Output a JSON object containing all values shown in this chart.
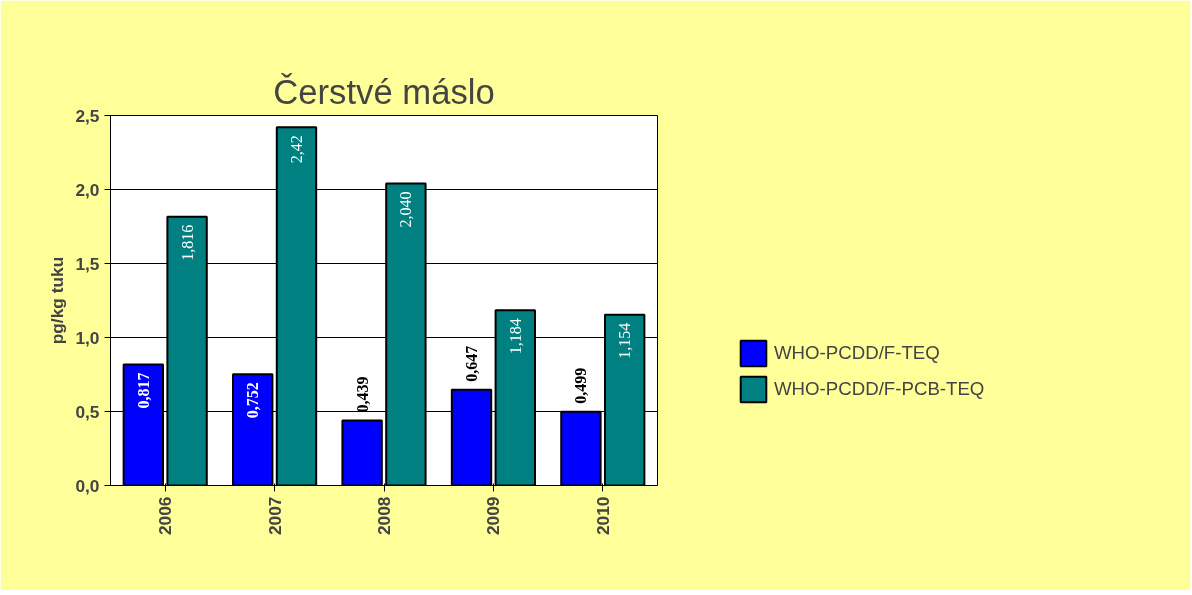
{
  "chart_data": {
    "type": "bar",
    "title": "Čerstvé máslo",
    "ylabel": "pg/kg tuku",
    "categories": [
      "2006",
      "2007",
      "2008",
      "2009",
      "2010"
    ],
    "series": [
      {
        "name": "WHO-PCDD/F-TEQ",
        "color": "#0000ff",
        "values": [
          0.817,
          0.752,
          0.439,
          0.647,
          0.499
        ],
        "value_labels": [
          "0,817",
          "0,752",
          "0,439",
          "0,647",
          "0,499"
        ]
      },
      {
        "name": "WHO-PCDD/F-PCB-TEQ",
        "color": "#008080",
        "values": [
          1.816,
          2.42,
          2.04,
          1.184,
          1.154
        ],
        "value_labels": [
          "1,816",
          "2,42",
          "2,040",
          "1,184",
          "1,154"
        ]
      }
    ],
    "ylim": [
      0,
      2.5
    ],
    "yticks": [
      {
        "value": 0,
        "label": "0,0"
      },
      {
        "value": 0.5,
        "label": "0,5"
      },
      {
        "value": 1,
        "label": "1,0"
      },
      {
        "value": 1.5,
        "label": "1,5"
      },
      {
        "value": 2,
        "label": "2,0"
      },
      {
        "value": 2.5,
        "label": "2,5"
      }
    ],
    "grid": "y",
    "legend": "right"
  }
}
